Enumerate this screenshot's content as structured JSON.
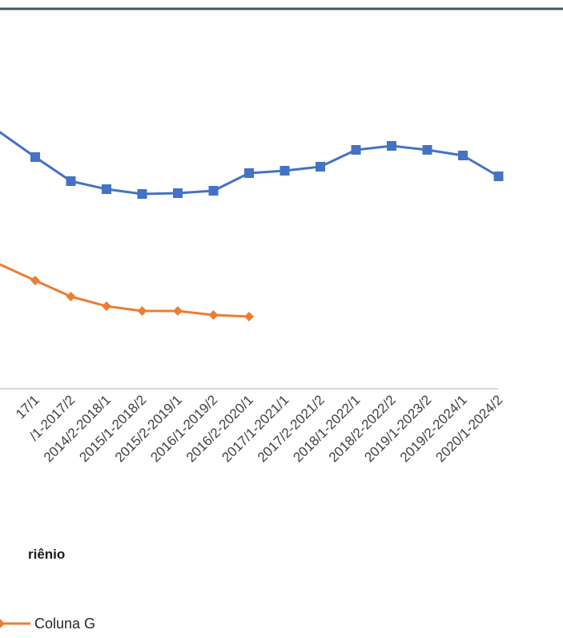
{
  "colors": {
    "top_rule": "#44546a",
    "axis_line": "#bfbfbf",
    "series_blue": "#4472c4",
    "series_orange": "#ed7d31"
  },
  "chart_data": {
    "type": "line",
    "xlabel": "riênio",
    "ylabel": "",
    "grid": false,
    "legend_position": "bottom",
    "categories": [
      "17/1",
      "/1-2017/2",
      "2014/2-2018/1",
      "2015/1-2018/2",
      "2015/2-2019/1",
      "2016/1-2019/2",
      "2016/2-2020/1",
      "2017/1-2021/1",
      "2017/2-2021/2",
      "2018/1-2022/1",
      "2018/2-2022/2",
      "2019/1-2023/2",
      "2019/2-2024/1",
      "2020/1-2024/2"
    ],
    "series": [
      {
        "key": "blue",
        "marker": "square",
        "values": [
          196,
          226,
          236,
          242,
          241,
          238,
          216,
          213,
          208,
          187,
          182,
          187,
          194,
          220
        ]
      },
      {
        "name": "Coluna G",
        "key": "orange",
        "marker": "diamond",
        "values": [
          350,
          370,
          382,
          388,
          388,
          393,
          395,
          null,
          null,
          null,
          null,
          null,
          null,
          null
        ]
      }
    ],
    "series_left_stubs": {
      "blue": 165,
      "orange": 330
    }
  }
}
